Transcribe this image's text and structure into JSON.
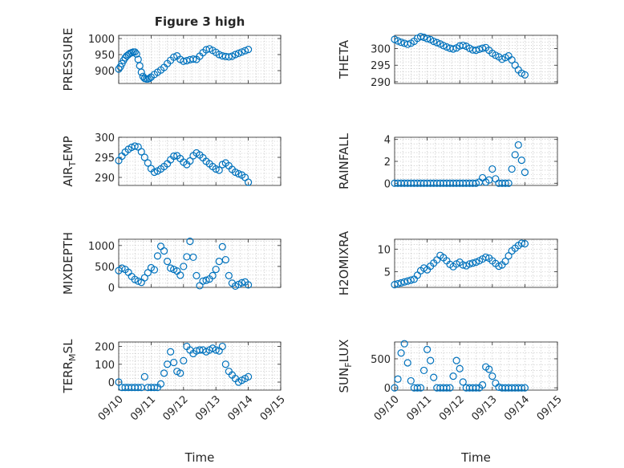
{
  "chart_data": [
    {
      "type": "scatter",
      "title": "Figure 3 high",
      "ylabel": "PRESSURE",
      "ylim": [
        860,
        1010
      ],
      "yticks": [
        900,
        950,
        1000
      ],
      "x": [
        0.0,
        0.05,
        0.1,
        0.15,
        0.2,
        0.25,
        0.3,
        0.35,
        0.4,
        0.45,
        0.5,
        0.55,
        0.6,
        0.65,
        0.7,
        0.75,
        0.8,
        0.85,
        0.9,
        0.95,
        1.0,
        1.1,
        1.2,
        1.3,
        1.4,
        1.5,
        1.6,
        1.7,
        1.8,
        1.9,
        2.0,
        2.1,
        2.2,
        2.3,
        2.4,
        2.5,
        2.6,
        2.7,
        2.8,
        2.9,
        3.0,
        3.1,
        3.2,
        3.3,
        3.4,
        3.5,
        3.6,
        3.7,
        3.8,
        3.9,
        4.0
      ],
      "y": [
        905,
        912,
        922,
        932,
        940,
        946,
        950,
        954,
        956,
        958,
        958,
        952,
        935,
        915,
        895,
        882,
        876,
        874,
        874,
        876,
        880,
        888,
        895,
        902,
        910,
        922,
        932,
        942,
        946,
        935,
        929,
        931,
        934,
        936,
        935,
        945,
        956,
        965,
        968,
        963,
        957,
        950,
        946,
        944,
        943,
        945,
        950,
        954,
        958,
        962,
        966
      ]
    },
    {
      "type": "scatter",
      "ylabel": "THETA",
      "ylim": [
        289.5,
        304
      ],
      "yticks": [
        290,
        295,
        300
      ],
      "x": [
        0.0,
        0.1,
        0.2,
        0.3,
        0.4,
        0.5,
        0.6,
        0.7,
        0.8,
        0.9,
        1.0,
        1.1,
        1.2,
        1.3,
        1.4,
        1.5,
        1.6,
        1.7,
        1.8,
        1.9,
        2.0,
        2.1,
        2.2,
        2.3,
        2.4,
        2.5,
        2.6,
        2.7,
        2.8,
        2.9,
        3.0,
        3.1,
        3.2,
        3.3,
        3.4,
        3.5,
        3.6,
        3.7,
        3.8,
        3.9,
        4.0
      ],
      "y": [
        302.8,
        302.3,
        301.9,
        301.6,
        301.3,
        301.6,
        302.2,
        303.1,
        303.6,
        303.4,
        303.0,
        302.7,
        302.2,
        301.8,
        301.4,
        300.9,
        300.5,
        300.1,
        299.9,
        300.2,
        300.8,
        301.0,
        300.7,
        300.1,
        299.6,
        299.5,
        299.8,
        300.1,
        300.3,
        299.5,
        298.6,
        298.0,
        297.5,
        296.8,
        297.3,
        297.8,
        296.6,
        295.0,
        293.6,
        292.6,
        292.1
      ]
    },
    {
      "type": "scatter",
      "ylabel": "AIR",
      "ylabel_sub": "T",
      "ylabel_rest": "EMP",
      "ylim": [
        288,
        300
      ],
      "yticks": [
        290,
        295,
        300
      ],
      "x": [
        0.0,
        0.1,
        0.2,
        0.3,
        0.4,
        0.5,
        0.6,
        0.7,
        0.8,
        0.9,
        1.0,
        1.1,
        1.2,
        1.3,
        1.4,
        1.5,
        1.6,
        1.7,
        1.8,
        1.9,
        2.0,
        2.1,
        2.2,
        2.3,
        2.4,
        2.5,
        2.6,
        2.7,
        2.8,
        2.9,
        3.0,
        3.1,
        3.2,
        3.3,
        3.4,
        3.5,
        3.6,
        3.7,
        3.8,
        3.9,
        4.0
      ],
      "y": [
        294.2,
        295.3,
        296.3,
        297.0,
        297.5,
        297.8,
        297.6,
        296.4,
        295.0,
        293.6,
        292.2,
        291.3,
        291.6,
        292.1,
        292.7,
        293.4,
        294.4,
        295.3,
        295.4,
        294.7,
        293.8,
        293.2,
        294.1,
        295.4,
        296.1,
        295.6,
        294.9,
        294.0,
        293.4,
        292.7,
        292.1,
        291.8,
        293.2,
        293.6,
        292.9,
        292.0,
        291.3,
        290.9,
        290.6,
        290.0,
        288.8
      ]
    },
    {
      "type": "scatter",
      "ylabel": "RAINFALL",
      "ylim": [
        -0.2,
        4.2
      ],
      "yticks": [
        0,
        2,
        4
      ],
      "x": [
        0.0,
        0.1,
        0.2,
        0.3,
        0.4,
        0.5,
        0.6,
        0.7,
        0.8,
        0.9,
        1.0,
        1.1,
        1.2,
        1.3,
        1.4,
        1.5,
        1.6,
        1.7,
        1.8,
        1.9,
        2.0,
        2.1,
        2.2,
        2.3,
        2.4,
        2.5,
        2.6,
        2.7,
        2.8,
        2.9,
        3.0,
        3.1,
        3.2,
        3.3,
        3.4,
        3.5,
        3.6,
        3.7,
        3.8,
        3.9,
        4.0
      ],
      "y": [
        0,
        0,
        0,
        0,
        0,
        0,
        0,
        0,
        0,
        0,
        0,
        0,
        0,
        0,
        0,
        0,
        0,
        0,
        0,
        0,
        0,
        0,
        0,
        0,
        0,
        0,
        0.1,
        0.5,
        0.1,
        0.3,
        1.3,
        0.4,
        0,
        0,
        0,
        0,
        1.3,
        2.6,
        3.5,
        2.1,
        1.0
      ]
    },
    {
      "type": "scatter",
      "ylabel": "MIXDEPTH",
      "ylim": [
        0,
        1150
      ],
      "yticks": [
        0,
        500,
        1000
      ],
      "x": [
        0.0,
        0.1,
        0.2,
        0.3,
        0.4,
        0.5,
        0.6,
        0.7,
        0.8,
        0.9,
        1.0,
        1.1,
        1.2,
        1.3,
        1.4,
        1.5,
        1.6,
        1.7,
        1.8,
        1.9,
        2.0,
        2.1,
        2.2,
        2.3,
        2.4,
        2.5,
        2.6,
        2.7,
        2.8,
        2.9,
        3.0,
        3.1,
        3.2,
        3.3,
        3.4,
        3.5,
        3.6,
        3.7,
        3.8,
        3.9,
        4.0
      ],
      "y": [
        400,
        460,
        430,
        360,
        260,
        190,
        150,
        120,
        230,
        350,
        470,
        420,
        750,
        980,
        870,
        620,
        460,
        430,
        390,
        290,
        500,
        730,
        1100,
        720,
        280,
        40,
        150,
        170,
        200,
        280,
        430,
        620,
        970,
        660,
        280,
        100,
        30,
        70,
        110,
        130,
        60
      ]
    },
    {
      "type": "scatter",
      "ylabel": "H2OMIXRA",
      "ylim": [
        1.5,
        12.2
      ],
      "yticks": [
        0,
        5,
        10
      ],
      "x": [
        0.0,
        0.1,
        0.2,
        0.3,
        0.4,
        0.5,
        0.6,
        0.7,
        0.8,
        0.9,
        1.0,
        1.1,
        1.2,
        1.3,
        1.4,
        1.5,
        1.6,
        1.7,
        1.8,
        1.9,
        2.0,
        2.1,
        2.2,
        2.3,
        2.4,
        2.5,
        2.6,
        2.7,
        2.8,
        2.9,
        3.0,
        3.1,
        3.2,
        3.3,
        3.4,
        3.5,
        3.6,
        3.7,
        3.8,
        3.9,
        4.0
      ],
      "y": [
        2.1,
        2.3,
        2.5,
        2.7,
        2.9,
        3.1,
        3.3,
        4.2,
        5.2,
        5.8,
        5.4,
        6.2,
        6.9,
        7.6,
        8.6,
        8.1,
        7.4,
        6.6,
        6.1,
        6.7,
        7.1,
        6.5,
        6.3,
        6.7,
        6.9,
        7.1,
        7.4,
        7.8,
        8.2,
        8.0,
        7.4,
        6.8,
        6.2,
        6.5,
        7.3,
        8.5,
        9.6,
        10.2,
        10.8,
        11.3,
        11.2
      ]
    },
    {
      "type": "scatter",
      "ylabel": "TERR",
      "ylabel_sub": "M",
      "ylabel_rest": "SL",
      "ylim": [
        -45,
        225
      ],
      "yticks": [
        0,
        100,
        200
      ],
      "x": [
        0.0,
        0.1,
        0.2,
        0.3,
        0.4,
        0.5,
        0.6,
        0.7,
        0.8,
        0.9,
        1.0,
        1.1,
        1.2,
        1.3,
        1.4,
        1.5,
        1.6,
        1.7,
        1.8,
        1.9,
        2.0,
        2.1,
        2.2,
        2.3,
        2.4,
        2.5,
        2.6,
        2.7,
        2.8,
        2.9,
        3.0,
        3.1,
        3.2,
        3.3,
        3.4,
        3.5,
        3.6,
        3.7,
        3.8,
        3.9,
        4.0
      ],
      "y": [
        0,
        -30,
        -30,
        -30,
        -30,
        -30,
        -30,
        -30,
        30,
        -30,
        -30,
        -30,
        -30,
        -10,
        50,
        100,
        170,
        110,
        60,
        50,
        120,
        200,
        180,
        160,
        175,
        180,
        180,
        170,
        180,
        190,
        180,
        175,
        200,
        100,
        60,
        40,
        20,
        0,
        10,
        20,
        30
      ]
    },
    {
      "type": "scatter",
      "ylabel": "SUN",
      "ylabel_sub": "F",
      "ylabel_rest": "LUX",
      "ylim": [
        -40,
        790
      ],
      "yticks": [
        0,
        500
      ],
      "x": [
        0.0,
        0.1,
        0.2,
        0.3,
        0.4,
        0.5,
        0.6,
        0.7,
        0.8,
        0.9,
        1.0,
        1.1,
        1.2,
        1.3,
        1.4,
        1.5,
        1.6,
        1.7,
        1.8,
        1.9,
        2.0,
        2.1,
        2.2,
        2.3,
        2.4,
        2.5,
        2.6,
        2.7,
        2.8,
        2.9,
        3.0,
        3.1,
        3.2,
        3.3,
        3.4,
        3.5,
        3.6,
        3.7,
        3.8,
        3.9,
        4.0
      ],
      "y": [
        0,
        150,
        600,
        760,
        430,
        120,
        0,
        0,
        0,
        300,
        660,
        470,
        180,
        0,
        0,
        0,
        0,
        0,
        200,
        470,
        330,
        100,
        0,
        0,
        0,
        0,
        0,
        50,
        360,
        320,
        200,
        80,
        10,
        0,
        0,
        0,
        0,
        0,
        0,
        0,
        0
      ]
    }
  ],
  "xaxis": {
    "xlabel": "Time",
    "xlim": [
      0,
      5
    ],
    "ticks": [
      0,
      1,
      2,
      3,
      4,
      5
    ],
    "tick_labels": [
      "09/10",
      "09/11",
      "09/12",
      "09/13",
      "09/14",
      "09/15"
    ]
  },
  "marker_color": "#0072BD"
}
